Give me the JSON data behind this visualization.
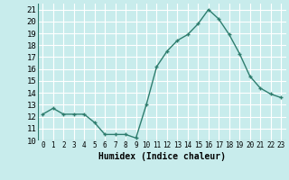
{
  "x": [
    0,
    1,
    2,
    3,
    4,
    5,
    6,
    7,
    8,
    9,
    10,
    11,
    12,
    13,
    14,
    15,
    16,
    17,
    18,
    19,
    20,
    21,
    22,
    23
  ],
  "y": [
    12.2,
    12.7,
    12.2,
    12.2,
    12.2,
    11.5,
    10.5,
    10.5,
    10.5,
    10.2,
    13.0,
    16.2,
    17.5,
    18.4,
    18.9,
    19.8,
    21.0,
    20.2,
    18.9,
    17.3,
    15.4,
    14.4,
    13.9,
    13.6
  ],
  "line_color": "#2e7d6e",
  "marker": "+",
  "bg_color": "#c8ecec",
  "grid_color": "#ffffff",
  "xlabel": "Humidex (Indice chaleur)",
  "ylim": [
    10,
    21.5
  ],
  "xlim": [
    -0.5,
    23.5
  ],
  "yticks": [
    10,
    11,
    12,
    13,
    14,
    15,
    16,
    17,
    18,
    19,
    20,
    21
  ],
  "xticks": [
    0,
    1,
    2,
    3,
    4,
    5,
    6,
    7,
    8,
    9,
    10,
    11,
    12,
    13,
    14,
    15,
    16,
    17,
    18,
    19,
    20,
    21,
    22,
    23
  ],
  "xlabel_fontsize": 7,
  "ytick_fontsize": 6.5,
  "xtick_fontsize": 5.5,
  "line_width": 1.0,
  "marker_size": 3.5
}
